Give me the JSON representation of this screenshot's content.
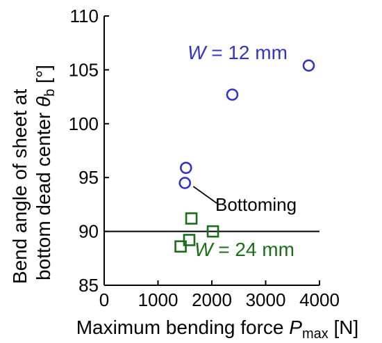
{
  "chart_data": {
    "type": "scatter",
    "title": "",
    "xlabel": {
      "prefix": "Maximum bending force ",
      "symbol": "P",
      "subscript": "max",
      "unit": " [N]"
    },
    "ylabel": {
      "line1": "Bend angle of sheet at",
      "line2_prefix": "bottom dead center ",
      "symbol": "θ",
      "subscript": "b",
      "unit": " [°]"
    },
    "xlim": [
      0,
      4000
    ],
    "ylim": [
      85,
      110
    ],
    "x_ticks": [
      0,
      1000,
      2000,
      3000,
      4000
    ],
    "y_ticks": [
      85,
      90,
      95,
      100,
      105,
      110
    ],
    "grid": false,
    "reference_line": {
      "y": 90
    },
    "series": [
      {
        "label_symbol": "W",
        "label_rest": " = 12 mm",
        "marker": "circle",
        "color": "#3333cc",
        "points": [
          {
            "x": 1520,
            "y": 95.9
          },
          {
            "x": 1500,
            "y": 94.5
          },
          {
            "x": 2380,
            "y": 102.7
          },
          {
            "x": 3800,
            "y": 105.4
          }
        ]
      },
      {
        "label_symbol": "W",
        "label_rest": " = 24 mm",
        "marker": "square",
        "color": "#1a6e1a",
        "points": [
          {
            "x": 1620,
            "y": 91.2
          },
          {
            "x": 2020,
            "y": 90.0
          },
          {
            "x": 1580,
            "y": 89.2
          },
          {
            "x": 1420,
            "y": 88.6
          }
        ]
      }
    ],
    "annotation": {
      "text": "Bottoming",
      "target": {
        "x": 1500,
        "y": 94.5
      }
    }
  }
}
